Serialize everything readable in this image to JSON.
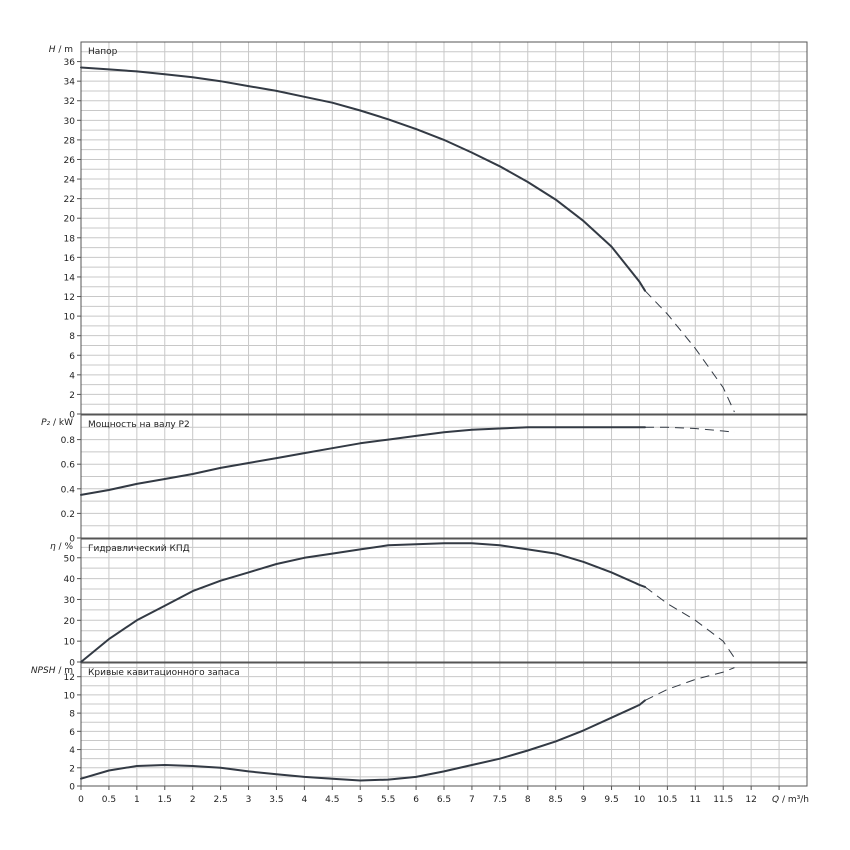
{
  "chart_data": [
    {
      "type": "line",
      "title": "Напор",
      "ylabel_symbol": "H",
      "ylabel_unit": "m",
      "ylim": [
        0,
        38
      ],
      "yticks": [
        0,
        2,
        4,
        6,
        8,
        10,
        12,
        14,
        16,
        18,
        20,
        22,
        24,
        26,
        28,
        30,
        32,
        34,
        36
      ],
      "series": [
        {
          "x": [
            0,
            0.5,
            1,
            1.5,
            2,
            2.5,
            3,
            3.5,
            4,
            4.5,
            5,
            5.5,
            6,
            6.5,
            7,
            7.5,
            8,
            8.5,
            9,
            9.5,
            10,
            10.1,
            10.5,
            11,
            11.5,
            11.7
          ],
          "values": [
            35.4,
            35.2,
            35.0,
            34.7,
            34.4,
            34.0,
            33.5,
            33.0,
            32.4,
            31.8,
            31.0,
            30.1,
            29.1,
            28.0,
            26.7,
            25.3,
            23.7,
            21.9,
            19.7,
            17.1,
            13.5,
            12.6,
            10.2,
            6.7,
            2.7,
            0.2
          ],
          "solid_until": 10.1
        }
      ]
    },
    {
      "type": "line",
      "title": "Мощность на валу P2",
      "ylabel_symbol": "P₂",
      "ylabel_unit": "kW",
      "ylim": [
        0,
        1.0
      ],
      "yticks": [
        0,
        0.2,
        0.4,
        0.6,
        0.8
      ],
      "series": [
        {
          "x": [
            0,
            0.5,
            1,
            1.5,
            2,
            2.5,
            3,
            3.5,
            4,
            4.5,
            5,
            5.5,
            6,
            6.5,
            7,
            7.5,
            8,
            8.5,
            9,
            9.5,
            10,
            10.1,
            10.5,
            11,
            11.5,
            11.7
          ],
          "values": [
            0.35,
            0.39,
            0.44,
            0.48,
            0.52,
            0.57,
            0.61,
            0.65,
            0.69,
            0.73,
            0.77,
            0.8,
            0.83,
            0.86,
            0.88,
            0.89,
            0.9,
            0.9,
            0.9,
            0.9,
            0.9,
            0.9,
            0.9,
            0.89,
            0.87,
            0.86
          ],
          "solid_until": 10.1
        }
      ]
    },
    {
      "type": "line",
      "title": "Гидравлический КПД",
      "ylabel_symbol": "η",
      "ylabel_unit": "%",
      "ylim": [
        0,
        59
      ],
      "yticks": [
        0,
        10,
        20,
        30,
        40,
        50
      ],
      "series": [
        {
          "x": [
            0,
            0.5,
            1,
            1.5,
            2,
            2.5,
            3,
            3.5,
            4,
            4.5,
            5,
            5.5,
            6,
            6.5,
            7,
            7.5,
            8,
            8.5,
            9,
            9.5,
            10,
            10.1,
            10.5,
            11,
            11.5,
            11.7
          ],
          "values": [
            0,
            11,
            20,
            27,
            34,
            39,
            43,
            47,
            50,
            52,
            54,
            56,
            56.5,
            57,
            57,
            56,
            54,
            52,
            48,
            43,
            37,
            36,
            28,
            20,
            10,
            2
          ],
          "solid_until": 10.1
        }
      ]
    },
    {
      "type": "line",
      "title": "Кривые кавитационного запаса",
      "ylabel_symbol": "NPSH",
      "ylabel_unit": "m",
      "ylim": [
        0,
        13.5
      ],
      "yticks": [
        0,
        2,
        4,
        6,
        8,
        10,
        12
      ],
      "series": [
        {
          "x": [
            0,
            0.5,
            1,
            1.5,
            2,
            2.5,
            3,
            3.5,
            4,
            4.5,
            5,
            5.5,
            6,
            6.5,
            7,
            7.5,
            8,
            8.5,
            9,
            9.5,
            10,
            10.1,
            10.5,
            11,
            11.5,
            11.7
          ],
          "values": [
            0.8,
            1.7,
            2.2,
            2.3,
            2.2,
            2.0,
            1.6,
            1.3,
            1.0,
            0.8,
            0.6,
            0.7,
            1.0,
            1.6,
            2.3,
            3.0,
            3.9,
            4.9,
            6.1,
            7.5,
            8.9,
            9.4,
            10.6,
            11.7,
            12.5,
            13.0
          ],
          "solid_until": 10.1
        }
      ]
    }
  ],
  "x_axis": {
    "xlim": [
      0,
      13
    ],
    "ticks": [
      0,
      0.5,
      1,
      1.5,
      2,
      2.5,
      3,
      3.5,
      4,
      4.5,
      5,
      5.5,
      6,
      6.5,
      7,
      7.5,
      8,
      8.5,
      9,
      9.5,
      10,
      10.5,
      11,
      11.5,
      12
    ],
    "label_symbol": "Q",
    "label_unit": "m³/h"
  },
  "grid": true,
  "line_color": "#333a44"
}
